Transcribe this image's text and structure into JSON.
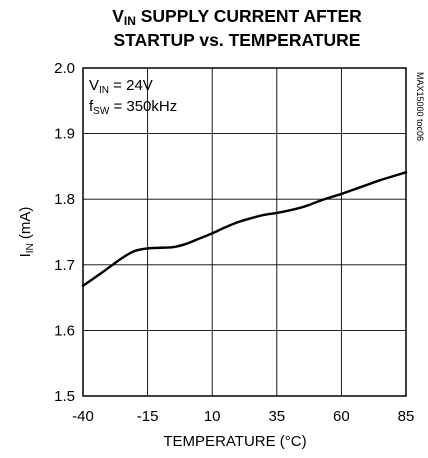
{
  "chart_data": {
    "type": "line",
    "title": {
      "line1_prefix": "V",
      "line1_sub": "IN",
      "line1_rest": " SUPPLY CURRENT AFTER",
      "line2": "STARTUP vs. TEMPERATURE"
    },
    "xlabel": "TEMPERATURE (°C)",
    "ylabel": {
      "main": "I",
      "sub": "IN",
      "rest": " (mA)"
    },
    "xlim": [
      -40,
      85
    ],
    "ylim": [
      1.5,
      2.0
    ],
    "xticks": [
      -40,
      -15,
      10,
      35,
      60,
      85
    ],
    "xtick_labels": [
      "-40",
      "-15",
      "10",
      "35",
      "60",
      "85"
    ],
    "yticks": [
      1.5,
      1.6,
      1.7,
      1.8,
      1.9,
      2.0
    ],
    "ytick_labels": [
      "1.5",
      "1.6",
      "1.7",
      "1.8",
      "1.9",
      "2.0"
    ],
    "grid": true,
    "annotations": [
      {
        "main": "V",
        "sub": "IN",
        "rest": " = 24V"
      },
      {
        "main": "f",
        "sub": "SW",
        "rest": " = 350kHz"
      }
    ],
    "side_code": "MAX15000 toc06",
    "series": [
      {
        "x": [
          -40,
          -32,
          -25,
          -20,
          -15,
          -10,
          -5,
          0,
          5,
          10,
          15,
          20,
          25,
          30,
          35,
          40,
          45,
          50,
          55,
          60,
          65,
          70,
          75,
          80,
          85
        ],
        "y": [
          1.668,
          1.69,
          1.71,
          1.721,
          1.725,
          1.726,
          1.727,
          1.732,
          1.74,
          1.748,
          1.757,
          1.765,
          1.771,
          1.776,
          1.779,
          1.783,
          1.788,
          1.795,
          1.802,
          1.808,
          1.815,
          1.822,
          1.829,
          1.835,
          1.841
        ]
      }
    ],
    "line_color": "#000000"
  }
}
